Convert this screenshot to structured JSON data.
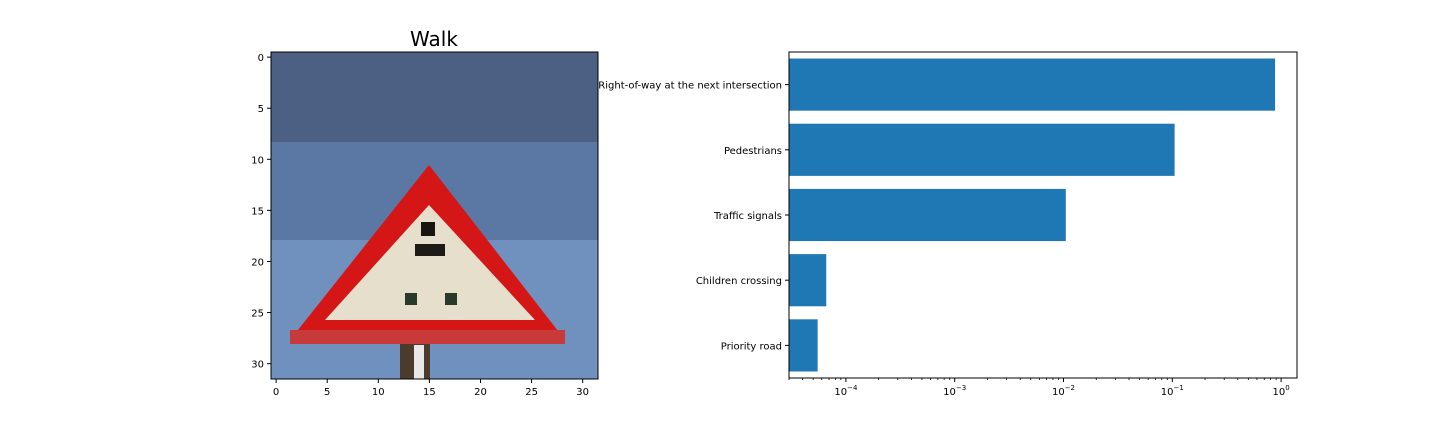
{
  "chart_data": [
    {
      "type": "image",
      "title": "Walk",
      "xlim": [
        -0.5,
        31.5
      ],
      "ylim": [
        31.5,
        -0.5
      ],
      "xticks": [
        0,
        5,
        10,
        15,
        20,
        25,
        30
      ],
      "yticks": [
        0,
        5,
        10,
        15,
        20,
        25,
        30
      ],
      "xtick_labels": [
        "0",
        "5",
        "10",
        "15",
        "20",
        "25",
        "30"
      ],
      "ytick_labels": [
        "0",
        "5",
        "10",
        "15",
        "20",
        "25",
        "30"
      ]
    },
    {
      "type": "bar",
      "orientation": "horizontal",
      "xscale": "log",
      "xlim": [
        3e-05,
        1.4
      ],
      "categories": [
        "Right-of-way at the next intersection",
        "Pedestrians",
        "Traffic signals",
        "Children crossing",
        "Priority road"
      ],
      "values": [
        0.88,
        0.105,
        0.0105,
        6.6e-05,
        5.5e-05
      ],
      "color": "#1f77b4",
      "xtick_values": [
        0.0001,
        0.001,
        0.01,
        0.1,
        1
      ],
      "xtick_labels": [
        {
          "base": "10",
          "exp": "−4"
        },
        {
          "base": "10",
          "exp": "−3"
        },
        {
          "base": "10",
          "exp": "−2"
        },
        {
          "base": "10",
          "exp": "−1"
        },
        {
          "base": "10",
          "exp": "0"
        }
      ],
      "xlabel": "",
      "ylabel": ""
    }
  ]
}
